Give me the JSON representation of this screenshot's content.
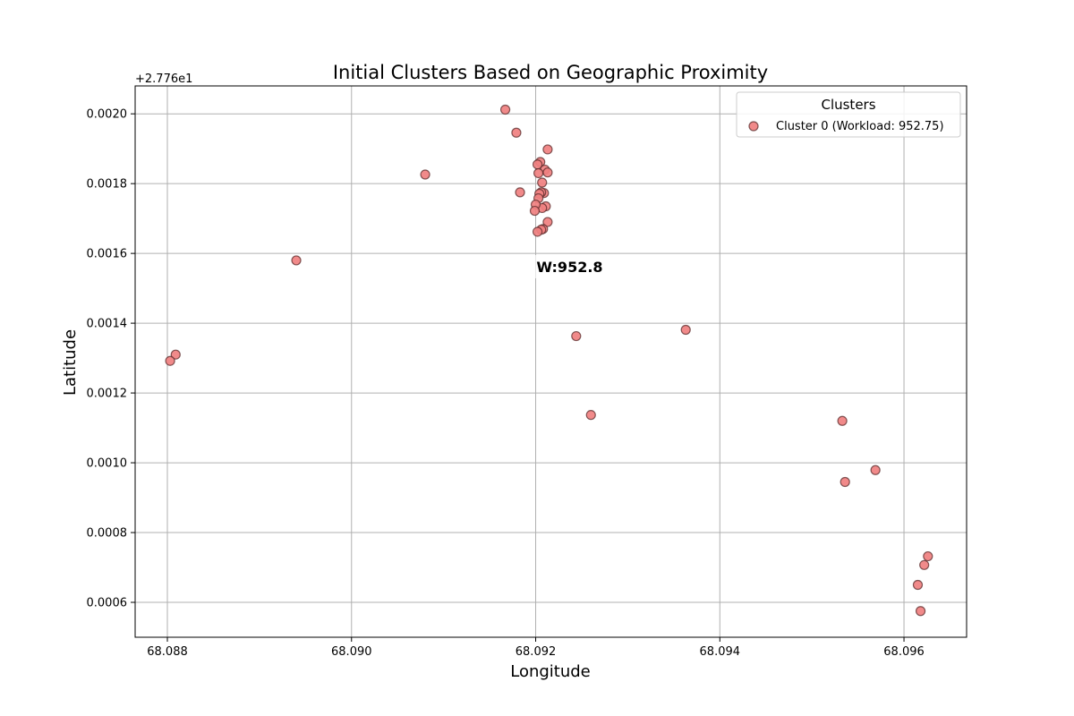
{
  "chart_data": {
    "type": "scatter",
    "title": "Initial Clusters Based on Geographic Proximity",
    "xlabel": "Longitude",
    "ylabel": "Latitude",
    "y_offset_label": "+2.776e1",
    "xlim": [
      68.08765,
      68.09668
    ],
    "ylim": [
      0.0005,
      0.00208
    ],
    "x_ticks": [
      68.088,
      68.09,
      68.092,
      68.094,
      68.096
    ],
    "x_tick_labels": [
      "68.088",
      "68.090",
      "68.092",
      "68.094",
      "68.096"
    ],
    "y_ticks": [
      0.0006,
      0.0008,
      0.001,
      0.0012,
      0.0014,
      0.0016,
      0.0018,
      0.002
    ],
    "y_tick_labels": [
      "0.0006",
      "0.0008",
      "0.0010",
      "0.0012",
      "0.0014",
      "0.0016",
      "0.0018",
      "0.0020"
    ],
    "grid": true,
    "legend": {
      "title": "Clusters",
      "placement": "top-right"
    },
    "series": [
      {
        "name": "Cluster 0 (Workload: 952.75)",
        "color": "#F08080",
        "points": [
          [
            68.09167,
            0.002012
          ],
          [
            68.09179,
            0.001946
          ],
          [
            68.09213,
            0.001898
          ],
          [
            68.09205,
            0.001862
          ],
          [
            68.09202,
            0.001855
          ],
          [
            68.0921,
            0.00184
          ],
          [
            68.09213,
            0.001832
          ],
          [
            68.09203,
            0.00183
          ],
          [
            68.0908,
            0.001826
          ],
          [
            68.09207,
            0.001803
          ],
          [
            68.09183,
            0.001775
          ],
          [
            68.09209,
            0.001773
          ],
          [
            68.09206,
            0.001775
          ],
          [
            68.09204,
            0.001771
          ],
          [
            68.09203,
            0.001758
          ],
          [
            68.09211,
            0.001735
          ],
          [
            68.09207,
            0.00173
          ],
          [
            68.092,
            0.00174
          ],
          [
            68.09199,
            0.001722
          ],
          [
            68.09213,
            0.00169
          ],
          [
            68.09208,
            0.00167
          ],
          [
            68.09206,
            0.001668
          ],
          [
            68.09202,
            0.001662
          ],
          [
            68.0894,
            0.00158
          ],
          [
            68.09244,
            0.001363
          ],
          [
            68.09363,
            0.001381
          ],
          [
            68.08809,
            0.00131
          ],
          [
            68.08803,
            0.001292
          ],
          [
            68.0926,
            0.001137
          ],
          [
            68.09533,
            0.00112
          ],
          [
            68.09569,
            0.000979
          ],
          [
            68.09536,
            0.000945
          ],
          [
            68.09626,
            0.000732
          ],
          [
            68.09622,
            0.000707
          ],
          [
            68.09615,
            0.00065
          ],
          [
            68.09618,
            0.000575
          ]
        ]
      }
    ],
    "annotations": [
      {
        "text": "W:952.8",
        "x": 68.09233,
        "y": 0.001562
      }
    ]
  }
}
